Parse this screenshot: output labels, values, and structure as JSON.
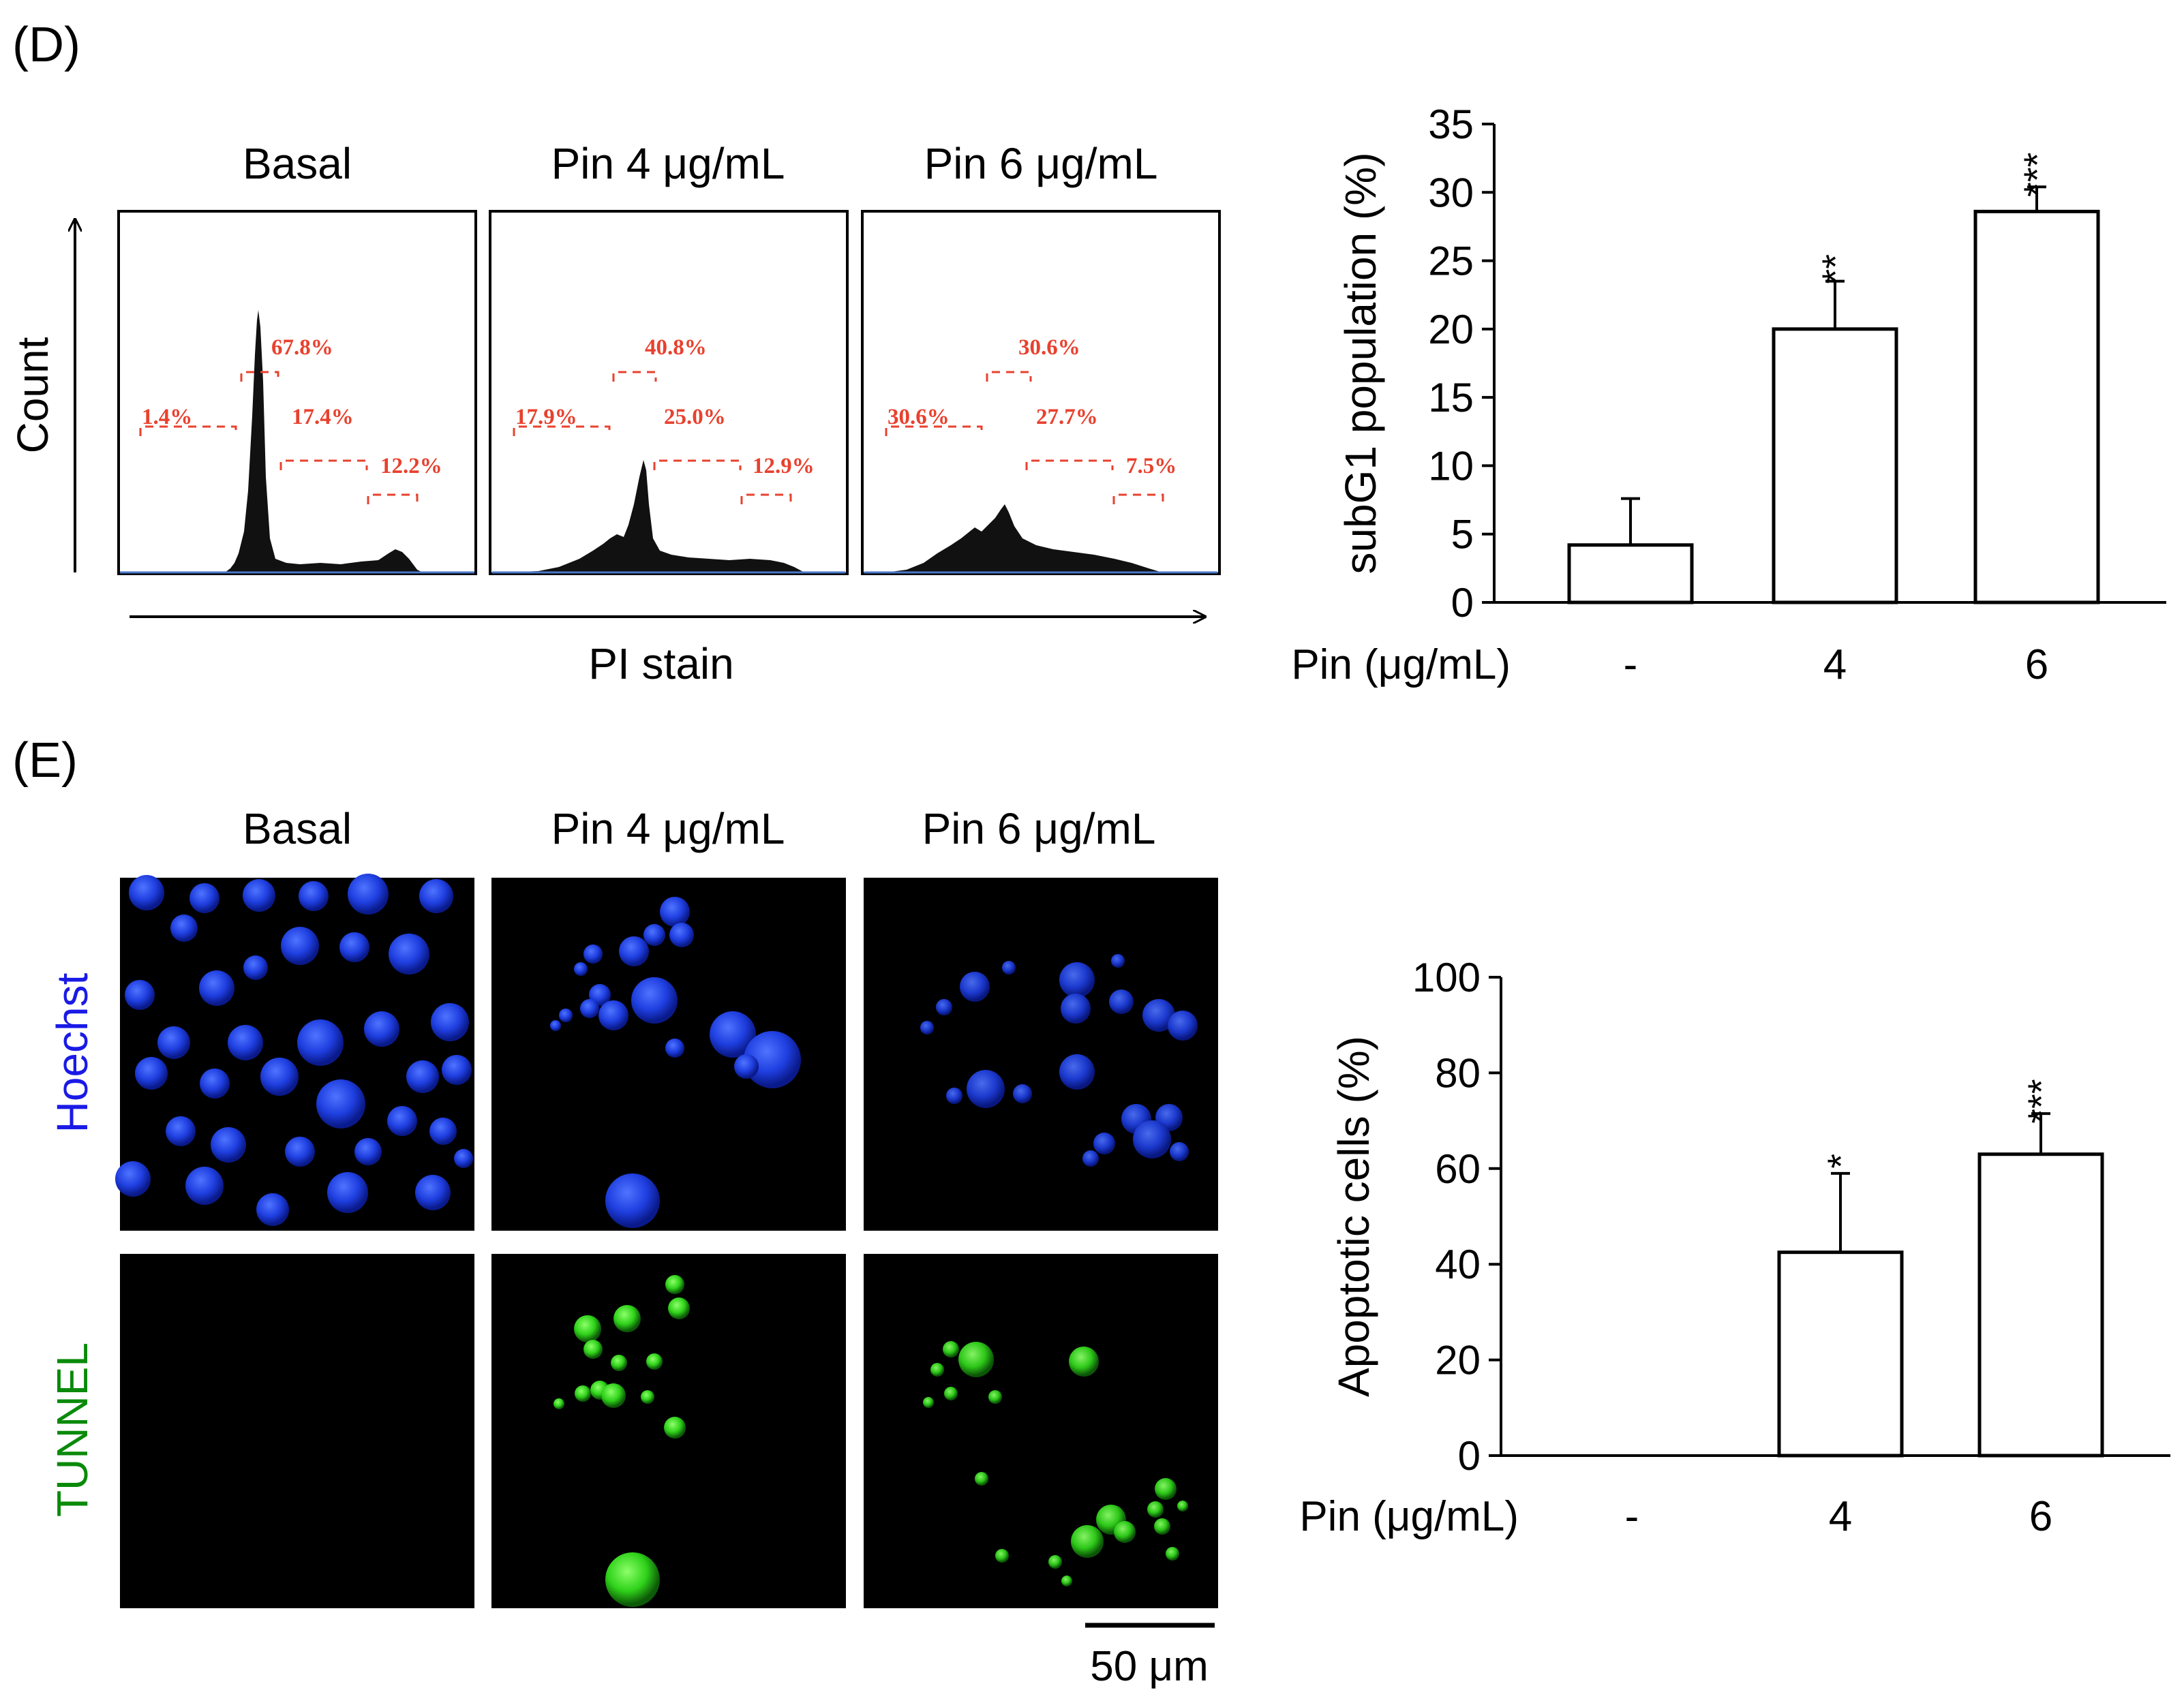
{
  "panel_d": {
    "label": "(D)",
    "histogram_titles": [
      "Basal",
      "Pin 4 μg/mL",
      "Pin 6 μg/mL"
    ],
    "y_axis_label": "Count",
    "x_axis_label": "PI stain",
    "gates": [
      [
        "1.4%",
        "67.8%",
        "17.4%",
        "12.2%"
      ],
      [
        "17.9%",
        "40.8%",
        "25.0%",
        "12.9%"
      ],
      [
        "30.6%",
        "30.6%",
        "27.7%",
        "7.5%"
      ]
    ]
  },
  "panel_e": {
    "label": "(E)",
    "image_titles": [
      "Basal",
      "Pin 4 μg/mL",
      "Pin 6 μg/mL"
    ],
    "row_labels": [
      "Hoechst",
      "TUNNEL"
    ],
    "row_colors": [
      "#1a1ae6",
      "#0a8a0a"
    ],
    "scale_bar": "50 μm"
  },
  "chart_data": [
    {
      "type": "bar",
      "ylabel": "subG1 population (%)",
      "xlabel": "Pin (μg/mL)",
      "categories": [
        "-",
        "4",
        "6"
      ],
      "values": [
        4.2,
        20.0,
        28.6
      ],
      "errors": [
        3.4,
        3.5,
        1.8
      ],
      "significance": [
        "",
        "**",
        "***"
      ],
      "ylim": [
        0,
        35
      ],
      "yticks": [
        0,
        5,
        10,
        15,
        20,
        25,
        30,
        35
      ]
    },
    {
      "type": "bar",
      "ylabel": "Apoptotic cells (%)",
      "xlabel": "Pin (μg/mL)",
      "categories": [
        "-",
        "4",
        "6"
      ],
      "values": [
        0,
        42.5,
        63
      ],
      "errors": [
        0,
        16.5,
        8.5
      ],
      "significance": [
        "",
        "*",
        "***"
      ],
      "ylim": [
        0,
        100
      ],
      "yticks": [
        0,
        20,
        40,
        60,
        80,
        100
      ]
    }
  ]
}
